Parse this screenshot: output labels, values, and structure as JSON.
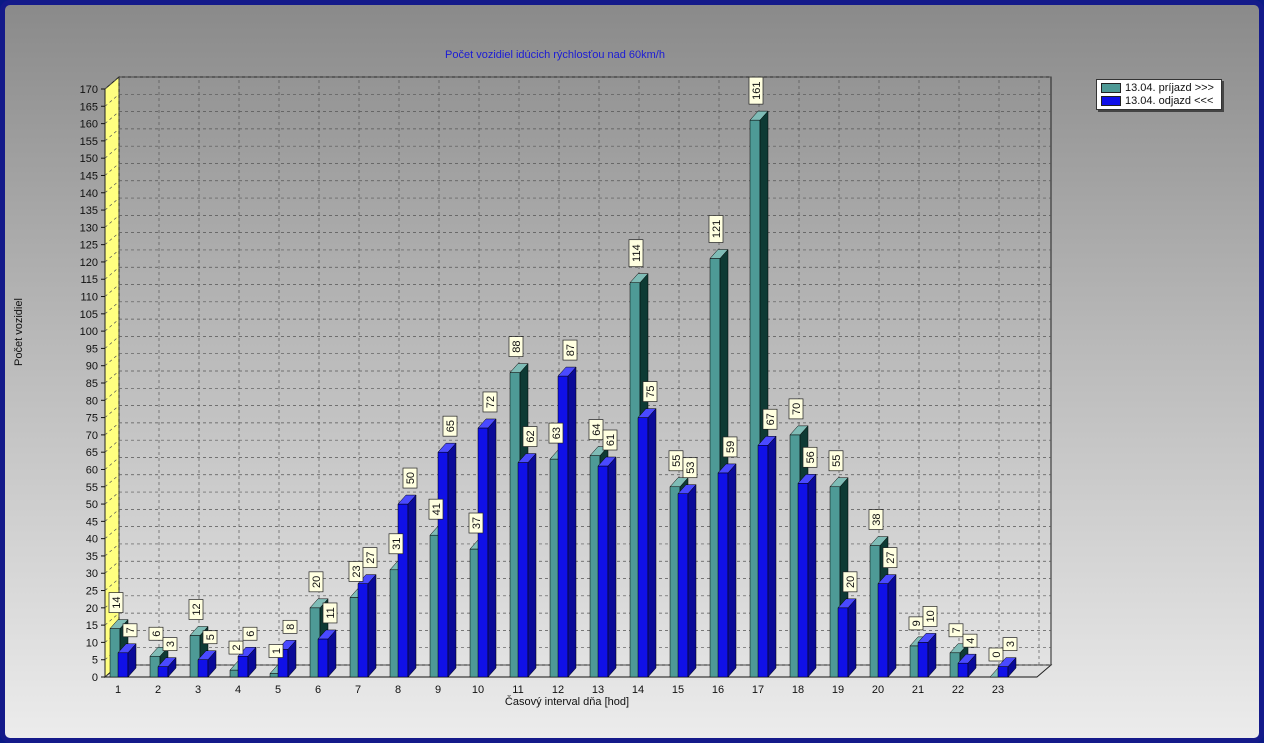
{
  "colors": {
    "series1_face": "#4e9a96",
    "series1_side": "#0e3a34",
    "series1_top": "#7fbcb6",
    "series2_face": "#1010e8",
    "series2_side": "#0a0a98",
    "series2_top": "#4a4aff",
    "title": "#1b1bd6",
    "wall_yellow": "#ffff80",
    "label_bg": "#ffffe0"
  },
  "chart_data": {
    "type": "bar",
    "title": "Počet vozidiel idúcich rýchlosťou nad 60km/h",
    "xlabel": "Časový interval dňa [hod]",
    "ylabel": "Počet vozidiel",
    "ylim": [
      0,
      170
    ],
    "ytick_step": 5,
    "grid": true,
    "legend_position": "top-right",
    "categories": [
      "1",
      "2",
      "3",
      "4",
      "5",
      "6",
      "7",
      "8",
      "9",
      "10",
      "11",
      "12",
      "13",
      "14",
      "15",
      "16",
      "17",
      "18",
      "19",
      "20",
      "21",
      "22",
      "23"
    ],
    "series": [
      {
        "name": "13.04.  príjazd >>>",
        "values": [
          14,
          6,
          12,
          2,
          1,
          20,
          23,
          31,
          41,
          37,
          88,
          63,
          64,
          114,
          55,
          121,
          161,
          70,
          55,
          38,
          9,
          7,
          0
        ]
      },
      {
        "name": "13.04.  odjazd <<<",
        "values": [
          7,
          3,
          5,
          6,
          8,
          11,
          27,
          50,
          65,
          72,
          62,
          87,
          61,
          75,
          53,
          59,
          67,
          56,
          20,
          27,
          10,
          4,
          3
        ]
      }
    ]
  }
}
